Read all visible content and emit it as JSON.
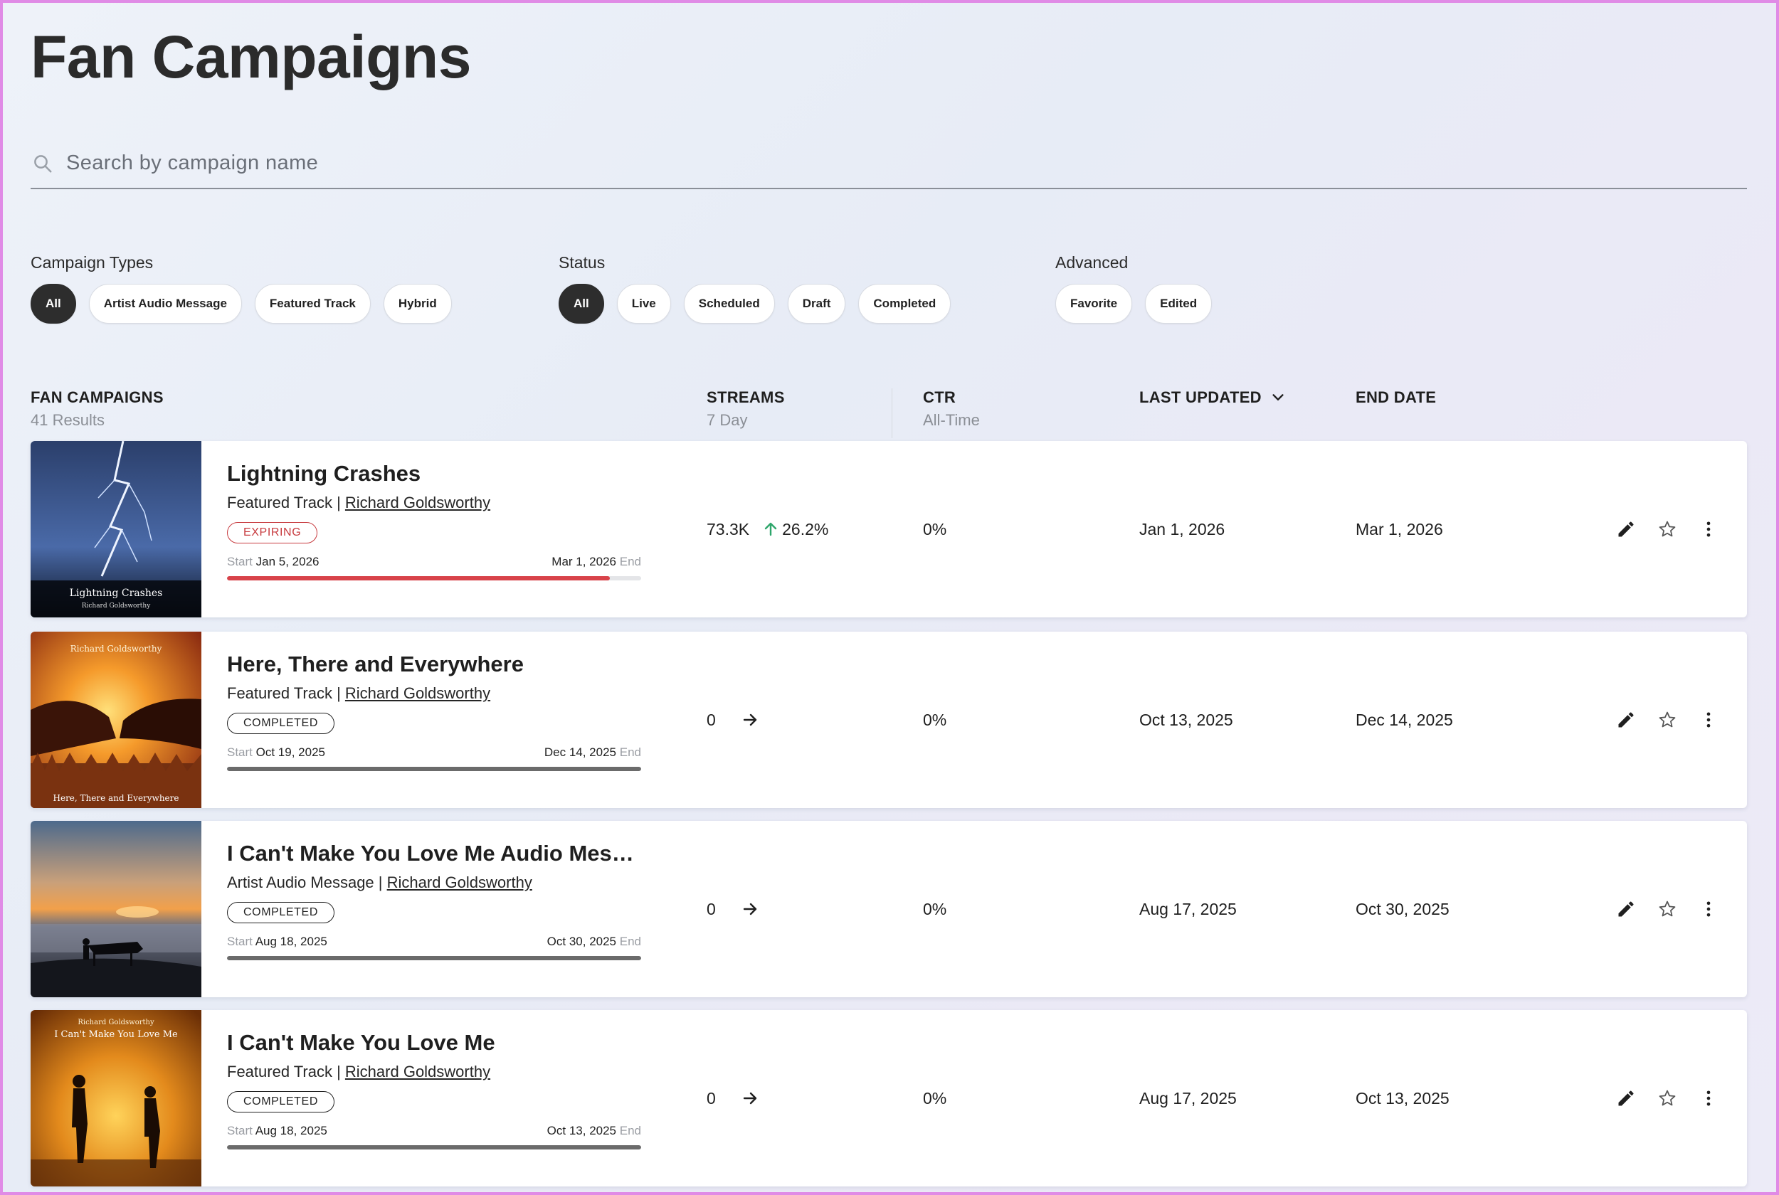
{
  "page": {
    "title": "Fan Campaigns"
  },
  "search": {
    "placeholder": "Search by campaign name"
  },
  "filters": {
    "campaign_types": {
      "label": "Campaign Types",
      "options": [
        "All",
        "Artist Audio Message",
        "Featured Track",
        "Hybrid"
      ],
      "selected": "All"
    },
    "status": {
      "label": "Status",
      "options": [
        "All",
        "Live",
        "Scheduled",
        "Draft",
        "Completed"
      ],
      "selected": "All"
    },
    "advanced": {
      "label": "Advanced",
      "options": [
        "Favorite",
        "Edited"
      ]
    }
  },
  "table": {
    "columns": {
      "campaigns": {
        "label": "FAN CAMPAIGNS",
        "sub": "41 Results"
      },
      "streams": {
        "label": "STREAMS",
        "sub": "7 Day"
      },
      "ctr": {
        "label": "CTR",
        "sub": "All-Time"
      },
      "last_updated": {
        "label": "LAST UPDATED"
      },
      "end_date": {
        "label": "END DATE"
      }
    },
    "start_label": "Start",
    "end_label": "End",
    "rows": [
      {
        "name": "Lightning Crashes",
        "type": "Featured Track",
        "artist": "Richard Goldsworthy",
        "status": "EXPIRING",
        "start": "Jan 5, 2026",
        "end": "Mar 1, 2026",
        "progress": 0.925,
        "progress_color": "#d8434a",
        "streams": "73.3K",
        "trend": "up",
        "trend_pct": "26.2%",
        "ctr": "0%",
        "last_updated": "Jan 1, 2026",
        "end_date": "Mar 1, 2026",
        "art": {
          "title": "Lightning Crashes",
          "artist": "Richard Goldsworthy"
        }
      },
      {
        "name": "Here, There and Everywhere",
        "type": "Featured Track",
        "artist": "Richard Goldsworthy",
        "status": "COMPLETED",
        "start": "Oct 19, 2025",
        "end": "Dec 14, 2025",
        "progress": 1.0,
        "progress_color": "#6b6b6b",
        "streams": "0",
        "trend": "flat",
        "trend_pct": "",
        "ctr": "0%",
        "last_updated": "Oct 13, 2025",
        "end_date": "Dec 14, 2025",
        "art": {
          "title": "Here, There and Everywhere",
          "artist": "Richard Goldsworthy"
        }
      },
      {
        "name": "I Can't Make You Love Me Audio Messa…",
        "type": "Artist Audio Message",
        "artist": "Richard Goldsworthy",
        "status": "COMPLETED",
        "start": "Aug 18, 2025",
        "end": "Oct 30, 2025",
        "progress": 1.0,
        "progress_color": "#6b6b6b",
        "streams": "0",
        "trend": "flat",
        "trend_pct": "",
        "ctr": "0%",
        "last_updated": "Aug 17, 2025",
        "end_date": "Oct 30, 2025",
        "art": {
          "title": "",
          "artist": ""
        }
      },
      {
        "name": "I Can't Make You Love Me",
        "type": "Featured Track",
        "artist": "Richard Goldsworthy",
        "status": "COMPLETED",
        "start": "Aug 18, 2025",
        "end": "Oct 13, 2025",
        "progress": 1.0,
        "progress_color": "#6b6b6b",
        "streams": "0",
        "trend": "flat",
        "trend_pct": "",
        "ctr": "0%",
        "last_updated": "Aug 17, 2025",
        "end_date": "Oct 13, 2025",
        "art": {
          "title": "I Can't Make You Love Me",
          "artist": "Richard Goldsworthy"
        }
      }
    ]
  }
}
